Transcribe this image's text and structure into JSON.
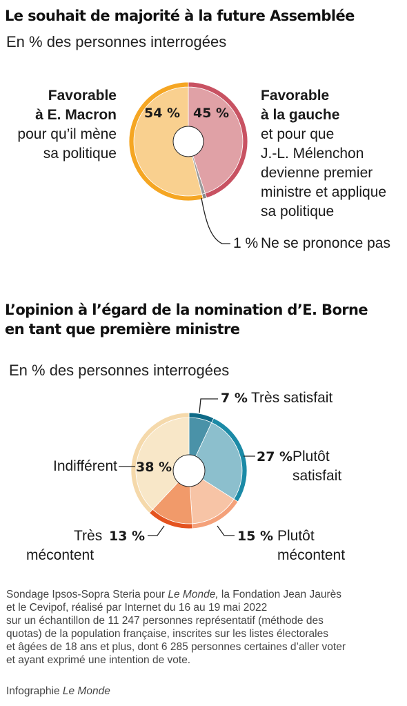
{
  "chart1": {
    "title": "Le souhait de majorité à la future Assemblée",
    "subtitle": "En % des personnes interrogées",
    "chart_data": {
      "type": "pie",
      "title": "Le souhait de majorité à la future Assemblée",
      "categories": [
        "Favorable à E. Macron pour qu'il mène sa politique",
        "Favorable à la gauche et pour que J.-L. Mélenchon devienne premier ministre et applique sa politique",
        "Ne se prononce pas"
      ],
      "values": [
        54,
        45,
        1
      ],
      "colors": [
        "#f9d08f",
        "#e0a1a6",
        "#9a9a9a"
      ],
      "ring_colors": [
        "#f5a623",
        "#c85262",
        "#888888"
      ]
    },
    "labels": {
      "macron_bold_1": "Favorable",
      "macron_bold_2": "à E. Macron",
      "macron_1": "pour qu’il mène",
      "macron_2": "sa politique",
      "gauche_bold_1": "Favorable",
      "gauche_bold_2": "à la gauche",
      "gauche_1": "et pour que",
      "gauche_2": "J.-L. Mélenchon",
      "gauche_3": "devienne premier",
      "gauche_4": "ministre et applique",
      "gauche_5": "sa politique",
      "macron_pct": "54 %",
      "gauche_pct": "45 %",
      "nsp_pct": "1 %",
      "nsp_label": "Ne se prononce pas"
    }
  },
  "chart2": {
    "title_1": "L’opinion à l’égard de la nomination d’E. Borne",
    "title_2": "en tant que première ministre",
    "subtitle": "En % des personnes interrogées",
    "chart_data": {
      "type": "pie",
      "title": "L’opinion à l’égard de la nomination d’E. Borne en tant que première ministre",
      "categories": [
        "Très satisfait",
        "Plutôt satisfait",
        "Plutôt mécontent",
        "Très mécontent",
        "Indifférent"
      ],
      "values": [
        7,
        27,
        15,
        13,
        38
      ],
      "colors": [
        "#4a92a8",
        "#8cbfcd",
        "#f7c4a6",
        "#f19a6a",
        "#f8e7c8"
      ],
      "ring_colors": [
        "#0e6a87",
        "#1b8aa6",
        "#f4a17a",
        "#e4531f",
        "#f5d9ab"
      ]
    },
    "labels": {
      "tres_sat_pct": "7 %",
      "tres_sat": "Très satisfait",
      "plutot_sat_pct": "27 %",
      "plutot_sat_1": "Plutôt",
      "plutot_sat_2": "satisfait",
      "plutot_mec_pct": "15 %",
      "plutot_mec_1": "Plutôt",
      "plutot_mec_2": "mécontent",
      "tres_mec_1": "Très",
      "tres_mec_pct": "13 %",
      "tres_mec_2": "mécontent",
      "indiff": "Indifférent",
      "indiff_pct": "38 %"
    }
  },
  "source": {
    "line_1a": "Sondage Ipsos-Sopra Steria pour ",
    "line_1b": "Le Monde,",
    "line_1c": " la Fondation Jean Jaurès",
    "line_2": "et le Cevipof, réalisé par Internet du 16 au 19 mai 2022",
    "line_3": "sur un échantillon de 11 247 personnes représentatif (méthode des",
    "line_4": "quotas) de la population française, inscrites sur les listes électorales",
    "line_5": "et âgées de 18 ans et plus, dont 6 285 personnes certaines d’aller voter",
    "line_6": "et ayant exprimé une intention de vote.",
    "credit_a": "Infographie ",
    "credit_b": "Le Monde"
  }
}
